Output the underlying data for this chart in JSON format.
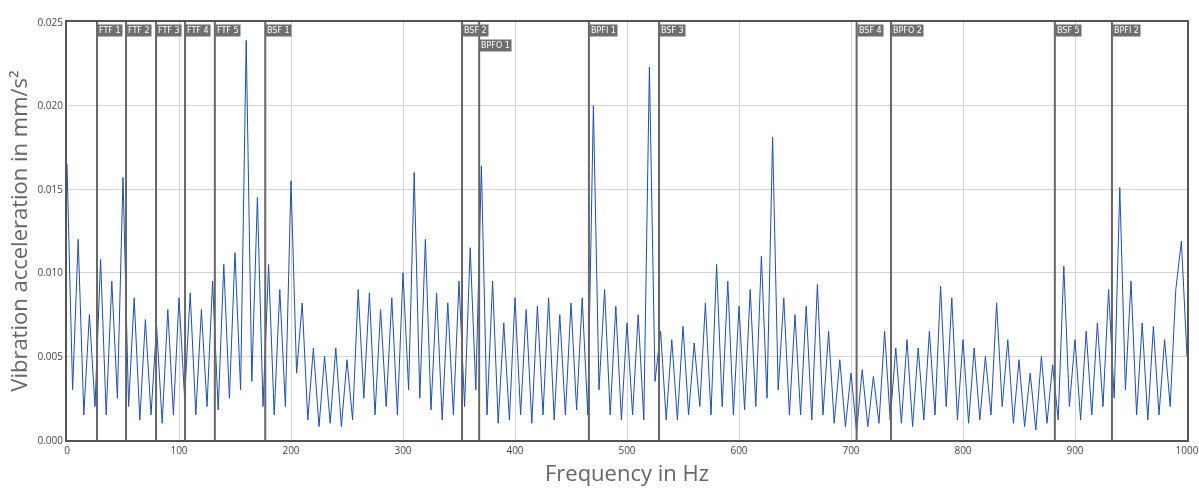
{
  "chart_data": {
    "type": "line",
    "xlabel": "Frequency in Hz",
    "ylabel": "Vibration acceleration in mm/s²",
    "x": [
      0,
      5,
      10,
      15,
      20,
      25,
      30,
      35,
      40,
      45,
      50,
      55,
      60,
      65,
      70,
      75,
      80,
      85,
      90,
      95,
      100,
      105,
      110,
      115,
      120,
      125,
      130,
      135,
      140,
      145,
      150,
      155,
      160,
      165,
      170,
      175,
      180,
      185,
      190,
      195,
      200,
      205,
      210,
      215,
      220,
      225,
      230,
      235,
      240,
      245,
      250,
      255,
      260,
      265,
      270,
      275,
      280,
      285,
      290,
      295,
      300,
      305,
      310,
      315,
      320,
      325,
      330,
      335,
      340,
      345,
      350,
      355,
      360,
      365,
      370,
      375,
      380,
      385,
      390,
      395,
      400,
      405,
      410,
      415,
      420,
      425,
      430,
      435,
      440,
      445,
      450,
      455,
      460,
      465,
      470,
      475,
      480,
      485,
      490,
      495,
      500,
      505,
      510,
      515,
      520,
      525,
      530,
      535,
      540,
      545,
      550,
      555,
      560,
      565,
      570,
      575,
      580,
      585,
      590,
      595,
      600,
      605,
      610,
      615,
      620,
      625,
      630,
      635,
      640,
      645,
      650,
      655,
      660,
      665,
      670,
      675,
      680,
      685,
      690,
      695,
      700,
      705,
      710,
      715,
      720,
      725,
      730,
      735,
      740,
      745,
      750,
      755,
      760,
      765,
      770,
      775,
      780,
      785,
      790,
      795,
      800,
      805,
      810,
      815,
      820,
      825,
      830,
      835,
      840,
      845,
      850,
      855,
      860,
      865,
      870,
      875,
      880,
      885,
      890,
      895,
      900,
      905,
      910,
      915,
      920,
      925,
      930,
      935,
      940,
      945,
      950,
      955,
      960,
      965,
      970,
      975,
      980,
      985,
      990,
      995,
      1000
    ],
    "series": [
      {
        "color": "#1f4eb0",
        "values": [
          0.0165,
          0.003,
          0.012,
          0.0015,
          0.0075,
          0.002,
          0.0108,
          0.0015,
          0.0095,
          0.0025,
          0.0157,
          0.002,
          0.0085,
          0.0012,
          0.0072,
          0.0015,
          0.0068,
          0.001,
          0.0078,
          0.0015,
          0.0085,
          0.0025,
          0.0088,
          0.0015,
          0.0078,
          0.002,
          0.0095,
          0.0018,
          0.0105,
          0.0025,
          0.0112,
          0.003,
          0.0239,
          0.0035,
          0.0145,
          0.002,
          0.0105,
          0.0015,
          0.009,
          0.002,
          0.0155,
          0.004,
          0.0082,
          0.0012,
          0.0055,
          0.0008,
          0.005,
          0.001,
          0.0055,
          0.0008,
          0.0048,
          0.0012,
          0.009,
          0.0025,
          0.0088,
          0.0015,
          0.0078,
          0.002,
          0.0085,
          0.0015,
          0.01,
          0.003,
          0.016,
          0.0025,
          0.012,
          0.0018,
          0.0088,
          0.0012,
          0.0082,
          0.0015,
          0.0095,
          0.002,
          0.0115,
          0.003,
          0.0164,
          0.0015,
          0.0095,
          0.001,
          0.007,
          0.0012,
          0.0085,
          0.0015,
          0.0078,
          0.001,
          0.008,
          0.0015,
          0.0085,
          0.0012,
          0.0075,
          0.0015,
          0.0082,
          0.0018,
          0.0085,
          0.0015,
          0.02,
          0.003,
          0.009,
          0.0015,
          0.008,
          0.0012,
          0.007,
          0.0015,
          0.0075,
          0.0012,
          0.0223,
          0.0035,
          0.0065,
          0.0012,
          0.006,
          0.0012,
          0.0068,
          0.0015,
          0.0058,
          0.002,
          0.0082,
          0.0015,
          0.0105,
          0.002,
          0.0095,
          0.0015,
          0.008,
          0.0018,
          0.009,
          0.002,
          0.011,
          0.0025,
          0.0181,
          0.003,
          0.0085,
          0.0015,
          0.0075,
          0.0015,
          0.008,
          0.0012,
          0.0093,
          0.0015,
          0.0065,
          0.001,
          0.0048,
          0.0008,
          0.004,
          0.0005,
          0.0042,
          0.0008,
          0.0038,
          0.001,
          0.0065,
          0.0012,
          0.0055,
          0.001,
          0.006,
          0.0008,
          0.0055,
          0.0012,
          0.0065,
          0.0015,
          0.0092,
          0.002,
          0.0085,
          0.0012,
          0.006,
          0.001,
          0.0055,
          0.0012,
          0.005,
          0.0015,
          0.0082,
          0.002,
          0.006,
          0.001,
          0.0048,
          0.0008,
          0.004,
          0.0006,
          0.005,
          0.001,
          0.0045,
          0.0012,
          0.0104,
          0.002,
          0.006,
          0.0012,
          0.0065,
          0.0015,
          0.007,
          0.002,
          0.009,
          0.0025,
          0.0151,
          0.003,
          0.0095,
          0.0015,
          0.007,
          0.0012,
          0.0068,
          0.0015,
          0.006,
          0.002,
          0.009,
          0.0119,
          0.005
        ]
      }
    ],
    "xlim": [
      0,
      1000
    ],
    "xticks": [
      0,
      100,
      200,
      300,
      400,
      500,
      600,
      700,
      800,
      900,
      1000
    ],
    "ylim": [
      0,
      0.025
    ],
    "yticks": [
      {
        "value": 0,
        "label": "0.000"
      },
      {
        "value": 0.005,
        "label": "0.005"
      },
      {
        "value": 0.01,
        "label": "0.010"
      },
      {
        "value": 0.015,
        "label": "0.015"
      },
      {
        "value": 0.02,
        "label": "0.020"
      },
      {
        "value": 0.025,
        "label": "0.025"
      }
    ],
    "grid": true,
    "marker": "none",
    "line_style": "solid",
    "ref_lines": [
      {
        "axis": "x",
        "value": 26.8,
        "label": "FTF 1",
        "color": "#666666"
      },
      {
        "axis": "x",
        "value": 52.7,
        "label": "FTF 2",
        "color": "#666666"
      },
      {
        "axis": "x",
        "value": 79.5,
        "label": "FTF 3",
        "color": "#666666"
      },
      {
        "axis": "x",
        "value": 105.4,
        "label": "FTF 4",
        "color": "#666666"
      },
      {
        "axis": "x",
        "value": 132,
        "label": "FTF 5",
        "color": "#666666"
      },
      {
        "axis": "x",
        "value": 177,
        "label": "BSF 1",
        "color": "#666666"
      },
      {
        "axis": "x",
        "value": 352.7,
        "label": "BSF 2",
        "color": "#666666"
      },
      {
        "axis": "x",
        "value": 368,
        "label": "BPFO 1",
        "color": "#666666"
      },
      {
        "axis": "x",
        "value": 466,
        "label": "BPFI 1",
        "color": "#666666"
      },
      {
        "axis": "x",
        "value": 528.6,
        "label": "BSF 3",
        "color": "#666666"
      },
      {
        "axis": "x",
        "value": 705,
        "label": "BSF 4",
        "color": "#666666"
      },
      {
        "axis": "x",
        "value": 735.7,
        "label": "BPFO 2",
        "color": "#666666"
      },
      {
        "axis": "x",
        "value": 882,
        "label": "BSF 5",
        "color": "#666666"
      },
      {
        "axis": "x",
        "value": 933,
        "label": "BPFI 2",
        "color": "#666666"
      }
    ]
  }
}
